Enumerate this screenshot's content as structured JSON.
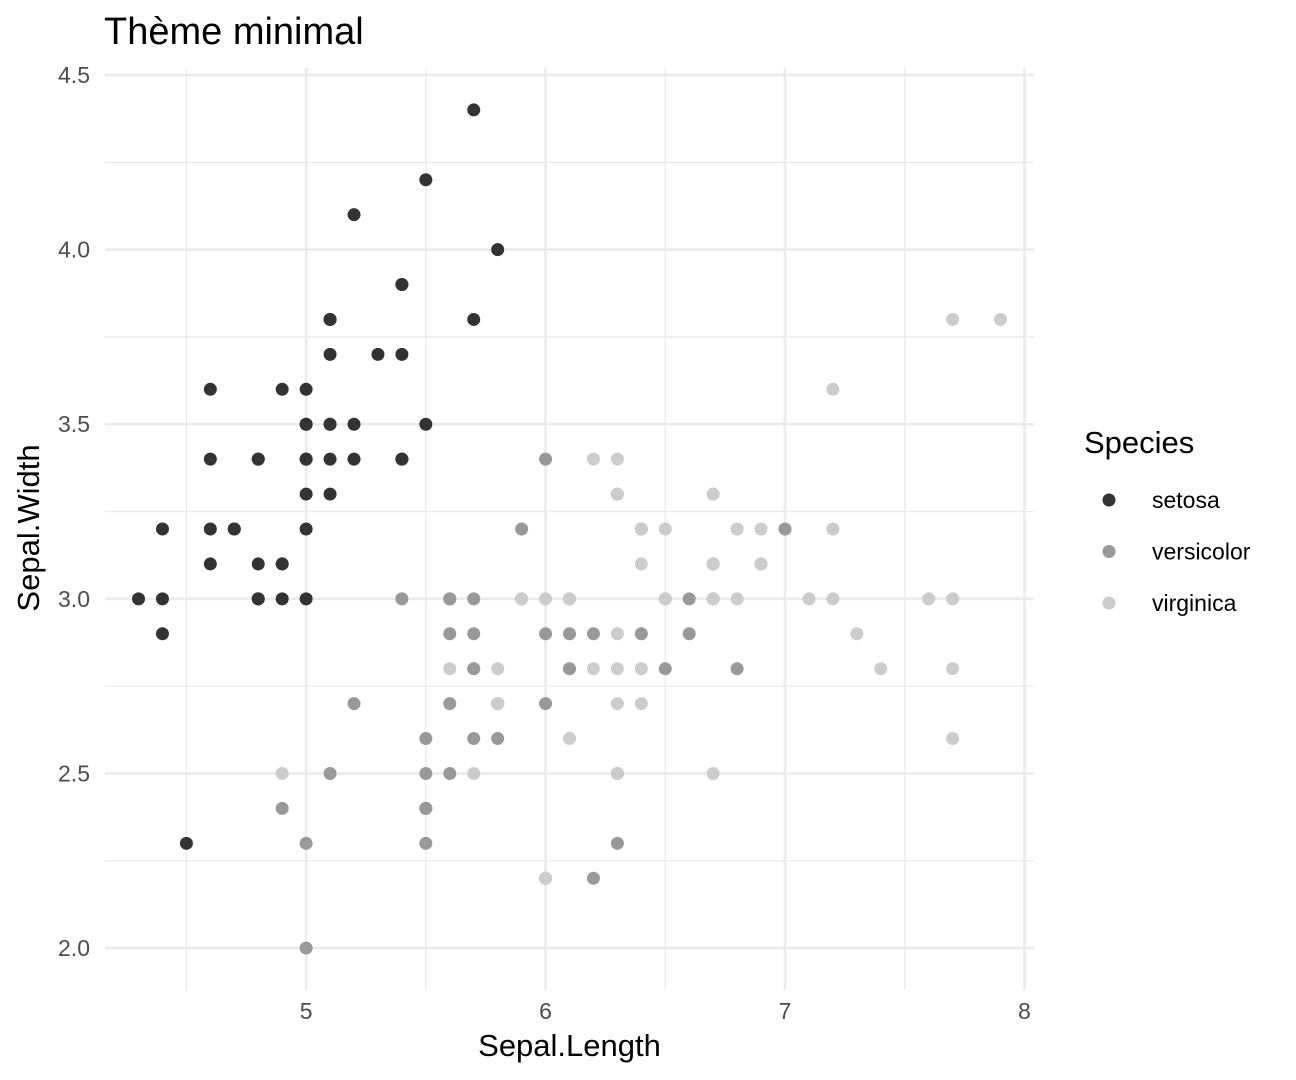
{
  "chart_data": {
    "type": "scatter",
    "title": "Thème minimal",
    "xlabel": "Sepal.Length",
    "ylabel": "Sepal.Width",
    "xlim": [
      4.16,
      8.04
    ],
    "ylim": [
      1.88,
      4.52
    ],
    "x_ticks": [
      5,
      6,
      7,
      8
    ],
    "x_tick_labels": [
      "5",
      "6",
      "7",
      "8"
    ],
    "x_minor_ticks": [
      4.5,
      5.5,
      6.5,
      7.5
    ],
    "y_ticks": [
      2.0,
      2.5,
      3.0,
      3.5,
      4.0,
      4.5
    ],
    "y_tick_labels": [
      "2.0",
      "2.5",
      "3.0",
      "3.5",
      "4.0",
      "4.5"
    ],
    "y_minor_ticks": [
      2.25,
      2.75,
      3.25,
      3.75,
      4.25
    ],
    "grid": true,
    "legend": {
      "title": "Species",
      "position": "right"
    },
    "series": [
      {
        "name": "setosa",
        "color": "#333333",
        "points": [
          [
            5.1,
            3.5
          ],
          [
            4.9,
            3.0
          ],
          [
            4.7,
            3.2
          ],
          [
            4.6,
            3.1
          ],
          [
            5.0,
            3.6
          ],
          [
            5.4,
            3.9
          ],
          [
            4.6,
            3.4
          ],
          [
            5.0,
            3.4
          ],
          [
            4.4,
            2.9
          ],
          [
            4.9,
            3.1
          ],
          [
            5.4,
            3.7
          ],
          [
            4.8,
            3.4
          ],
          [
            4.8,
            3.0
          ],
          [
            4.3,
            3.0
          ],
          [
            5.8,
            4.0
          ],
          [
            5.7,
            4.4
          ],
          [
            5.4,
            3.9
          ],
          [
            5.1,
            3.5
          ],
          [
            5.7,
            3.8
          ],
          [
            5.1,
            3.8
          ],
          [
            5.4,
            3.4
          ],
          [
            5.1,
            3.7
          ],
          [
            4.6,
            3.6
          ],
          [
            5.1,
            3.3
          ],
          [
            4.8,
            3.4
          ],
          [
            5.0,
            3.0
          ],
          [
            5.0,
            3.4
          ],
          [
            5.2,
            3.5
          ],
          [
            5.2,
            3.4
          ],
          [
            4.7,
            3.2
          ],
          [
            4.8,
            3.1
          ],
          [
            5.4,
            3.4
          ],
          [
            5.2,
            4.1
          ],
          [
            5.5,
            4.2
          ],
          [
            4.9,
            3.1
          ],
          [
            5.0,
            3.2
          ],
          [
            5.5,
            3.5
          ],
          [
            4.9,
            3.6
          ],
          [
            4.4,
            3.0
          ],
          [
            5.1,
            3.4
          ],
          [
            5.0,
            3.5
          ],
          [
            4.5,
            2.3
          ],
          [
            4.4,
            3.2
          ],
          [
            5.0,
            3.5
          ],
          [
            5.1,
            3.8
          ],
          [
            4.8,
            3.0
          ],
          [
            5.1,
            3.8
          ],
          [
            4.6,
            3.2
          ],
          [
            5.3,
            3.7
          ],
          [
            5.0,
            3.3
          ]
        ]
      },
      {
        "name": "versicolor",
        "color": "#999999",
        "points": [
          [
            7.0,
            3.2
          ],
          [
            6.4,
            3.2
          ],
          [
            6.9,
            3.1
          ],
          [
            5.5,
            2.3
          ],
          [
            6.5,
            2.8
          ],
          [
            5.7,
            2.8
          ],
          [
            6.3,
            3.3
          ],
          [
            4.9,
            2.4
          ],
          [
            6.6,
            2.9
          ],
          [
            5.2,
            2.7
          ],
          [
            5.0,
            2.0
          ],
          [
            5.9,
            3.0
          ],
          [
            6.0,
            2.2
          ],
          [
            6.1,
            2.9
          ],
          [
            5.6,
            2.9
          ],
          [
            6.7,
            3.1
          ],
          [
            5.6,
            3.0
          ],
          [
            5.8,
            2.7
          ],
          [
            6.2,
            2.2
          ],
          [
            5.6,
            2.5
          ],
          [
            5.9,
            3.2
          ],
          [
            6.1,
            2.8
          ],
          [
            6.3,
            2.5
          ],
          [
            6.1,
            2.8
          ],
          [
            6.4,
            2.9
          ],
          [
            6.6,
            3.0
          ],
          [
            6.8,
            2.8
          ],
          [
            6.7,
            3.0
          ],
          [
            6.0,
            2.9
          ],
          [
            5.7,
            2.6
          ],
          [
            5.5,
            2.4
          ],
          [
            5.5,
            2.4
          ],
          [
            5.8,
            2.7
          ],
          [
            6.0,
            2.7
          ],
          [
            5.4,
            3.0
          ],
          [
            6.0,
            3.4
          ],
          [
            6.7,
            3.1
          ],
          [
            6.3,
            2.3
          ],
          [
            5.6,
            3.0
          ],
          [
            5.5,
            2.5
          ],
          [
            5.5,
            2.6
          ],
          [
            6.1,
            3.0
          ],
          [
            5.8,
            2.6
          ],
          [
            5.0,
            2.3
          ],
          [
            5.6,
            2.7
          ],
          [
            5.7,
            3.0
          ],
          [
            5.7,
            2.9
          ],
          [
            6.2,
            2.9
          ],
          [
            5.1,
            2.5
          ],
          [
            5.7,
            2.8
          ]
        ]
      },
      {
        "name": "virginica",
        "color": "#cccccc",
        "points": [
          [
            6.3,
            3.3
          ],
          [
            5.8,
            2.7
          ],
          [
            7.1,
            3.0
          ],
          [
            6.3,
            2.9
          ],
          [
            6.5,
            3.0
          ],
          [
            7.6,
            3.0
          ],
          [
            4.9,
            2.5
          ],
          [
            7.3,
            2.9
          ],
          [
            6.7,
            2.5
          ],
          [
            7.2,
            3.6
          ],
          [
            6.5,
            3.2
          ],
          [
            6.4,
            2.7
          ],
          [
            6.8,
            3.0
          ],
          [
            5.7,
            2.5
          ],
          [
            5.8,
            2.8
          ],
          [
            6.4,
            3.2
          ],
          [
            6.5,
            3.0
          ],
          [
            7.7,
            3.8
          ],
          [
            7.7,
            2.6
          ],
          [
            6.0,
            2.2
          ],
          [
            6.9,
            3.2
          ],
          [
            5.6,
            2.8
          ],
          [
            7.7,
            2.8
          ],
          [
            6.3,
            2.7
          ],
          [
            6.7,
            3.3
          ],
          [
            7.2,
            3.2
          ],
          [
            6.2,
            2.8
          ],
          [
            6.1,
            3.0
          ],
          [
            6.4,
            2.8
          ],
          [
            7.2,
            3.0
          ],
          [
            7.4,
            2.8
          ],
          [
            7.9,
            3.8
          ],
          [
            6.4,
            2.8
          ],
          [
            6.3,
            2.8
          ],
          [
            6.1,
            2.6
          ],
          [
            7.7,
            3.0
          ],
          [
            6.3,
            3.4
          ],
          [
            6.4,
            3.1
          ],
          [
            6.0,
            3.0
          ],
          [
            6.9,
            3.1
          ],
          [
            6.7,
            3.1
          ],
          [
            6.9,
            3.1
          ],
          [
            5.8,
            2.7
          ],
          [
            6.8,
            3.2
          ],
          [
            6.7,
            3.3
          ],
          [
            6.7,
            3.0
          ],
          [
            6.3,
            2.5
          ],
          [
            6.5,
            3.0
          ],
          [
            6.2,
            3.4
          ],
          [
            5.9,
            3.0
          ]
        ]
      }
    ]
  }
}
